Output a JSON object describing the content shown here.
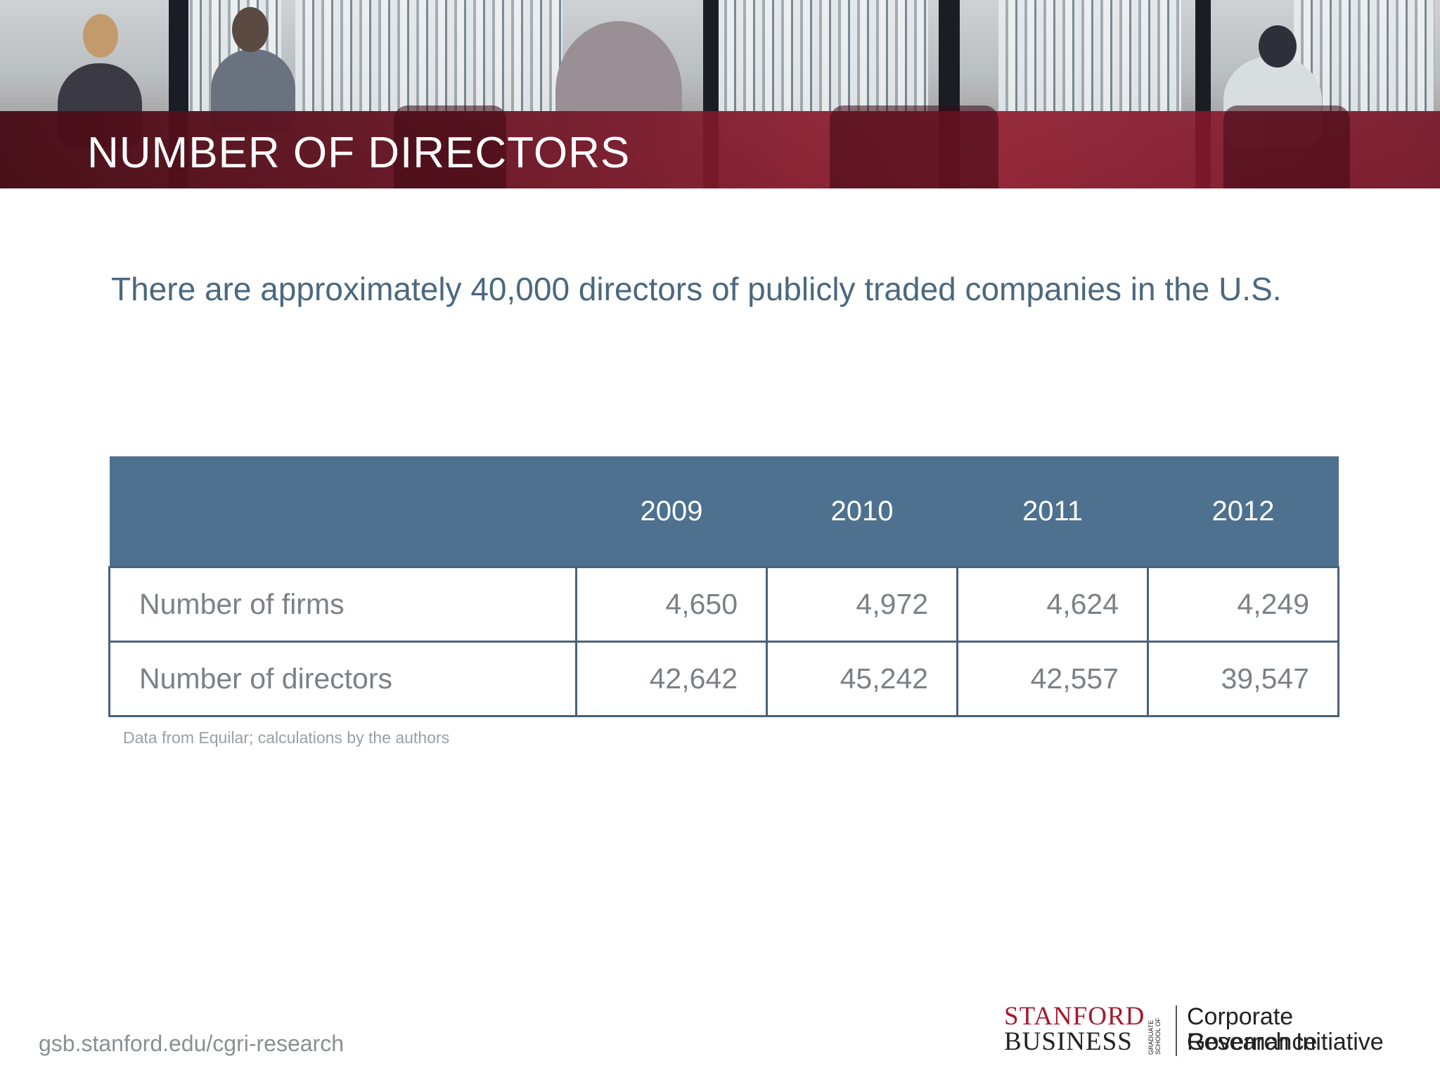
{
  "header": {
    "title": "NUMBER OF DIRECTORS"
  },
  "subtitle": "There are approximately 40,000 directors of publicly traded companies in the U.S.",
  "table": {
    "columns": [
      "",
      "2009",
      "2010",
      "2011",
      "2012"
    ],
    "rows": [
      {
        "label": "Number of firms",
        "values": [
          "4,650",
          "4,972",
          "4,624",
          "4,249"
        ]
      },
      {
        "label": "Number of directors",
        "values": [
          "42,642",
          "45,242",
          "42,557",
          "39,547"
        ]
      }
    ]
  },
  "source_note": "Data from Equilar; calculations by the authors",
  "footer": {
    "url": "gsb.stanford.edu/cgri-research",
    "logo": {
      "line1": "STANFORD",
      "line2": "BUSINESS",
      "vertical": "GRADUATE SCHOOL OF",
      "initiative_line1": "Corporate Governance",
      "initiative_line2": "Research Initiative"
    }
  },
  "colors": {
    "table_header": "#4d718e",
    "subtitle": "#4a6880",
    "banner_red": "#a6192e"
  }
}
